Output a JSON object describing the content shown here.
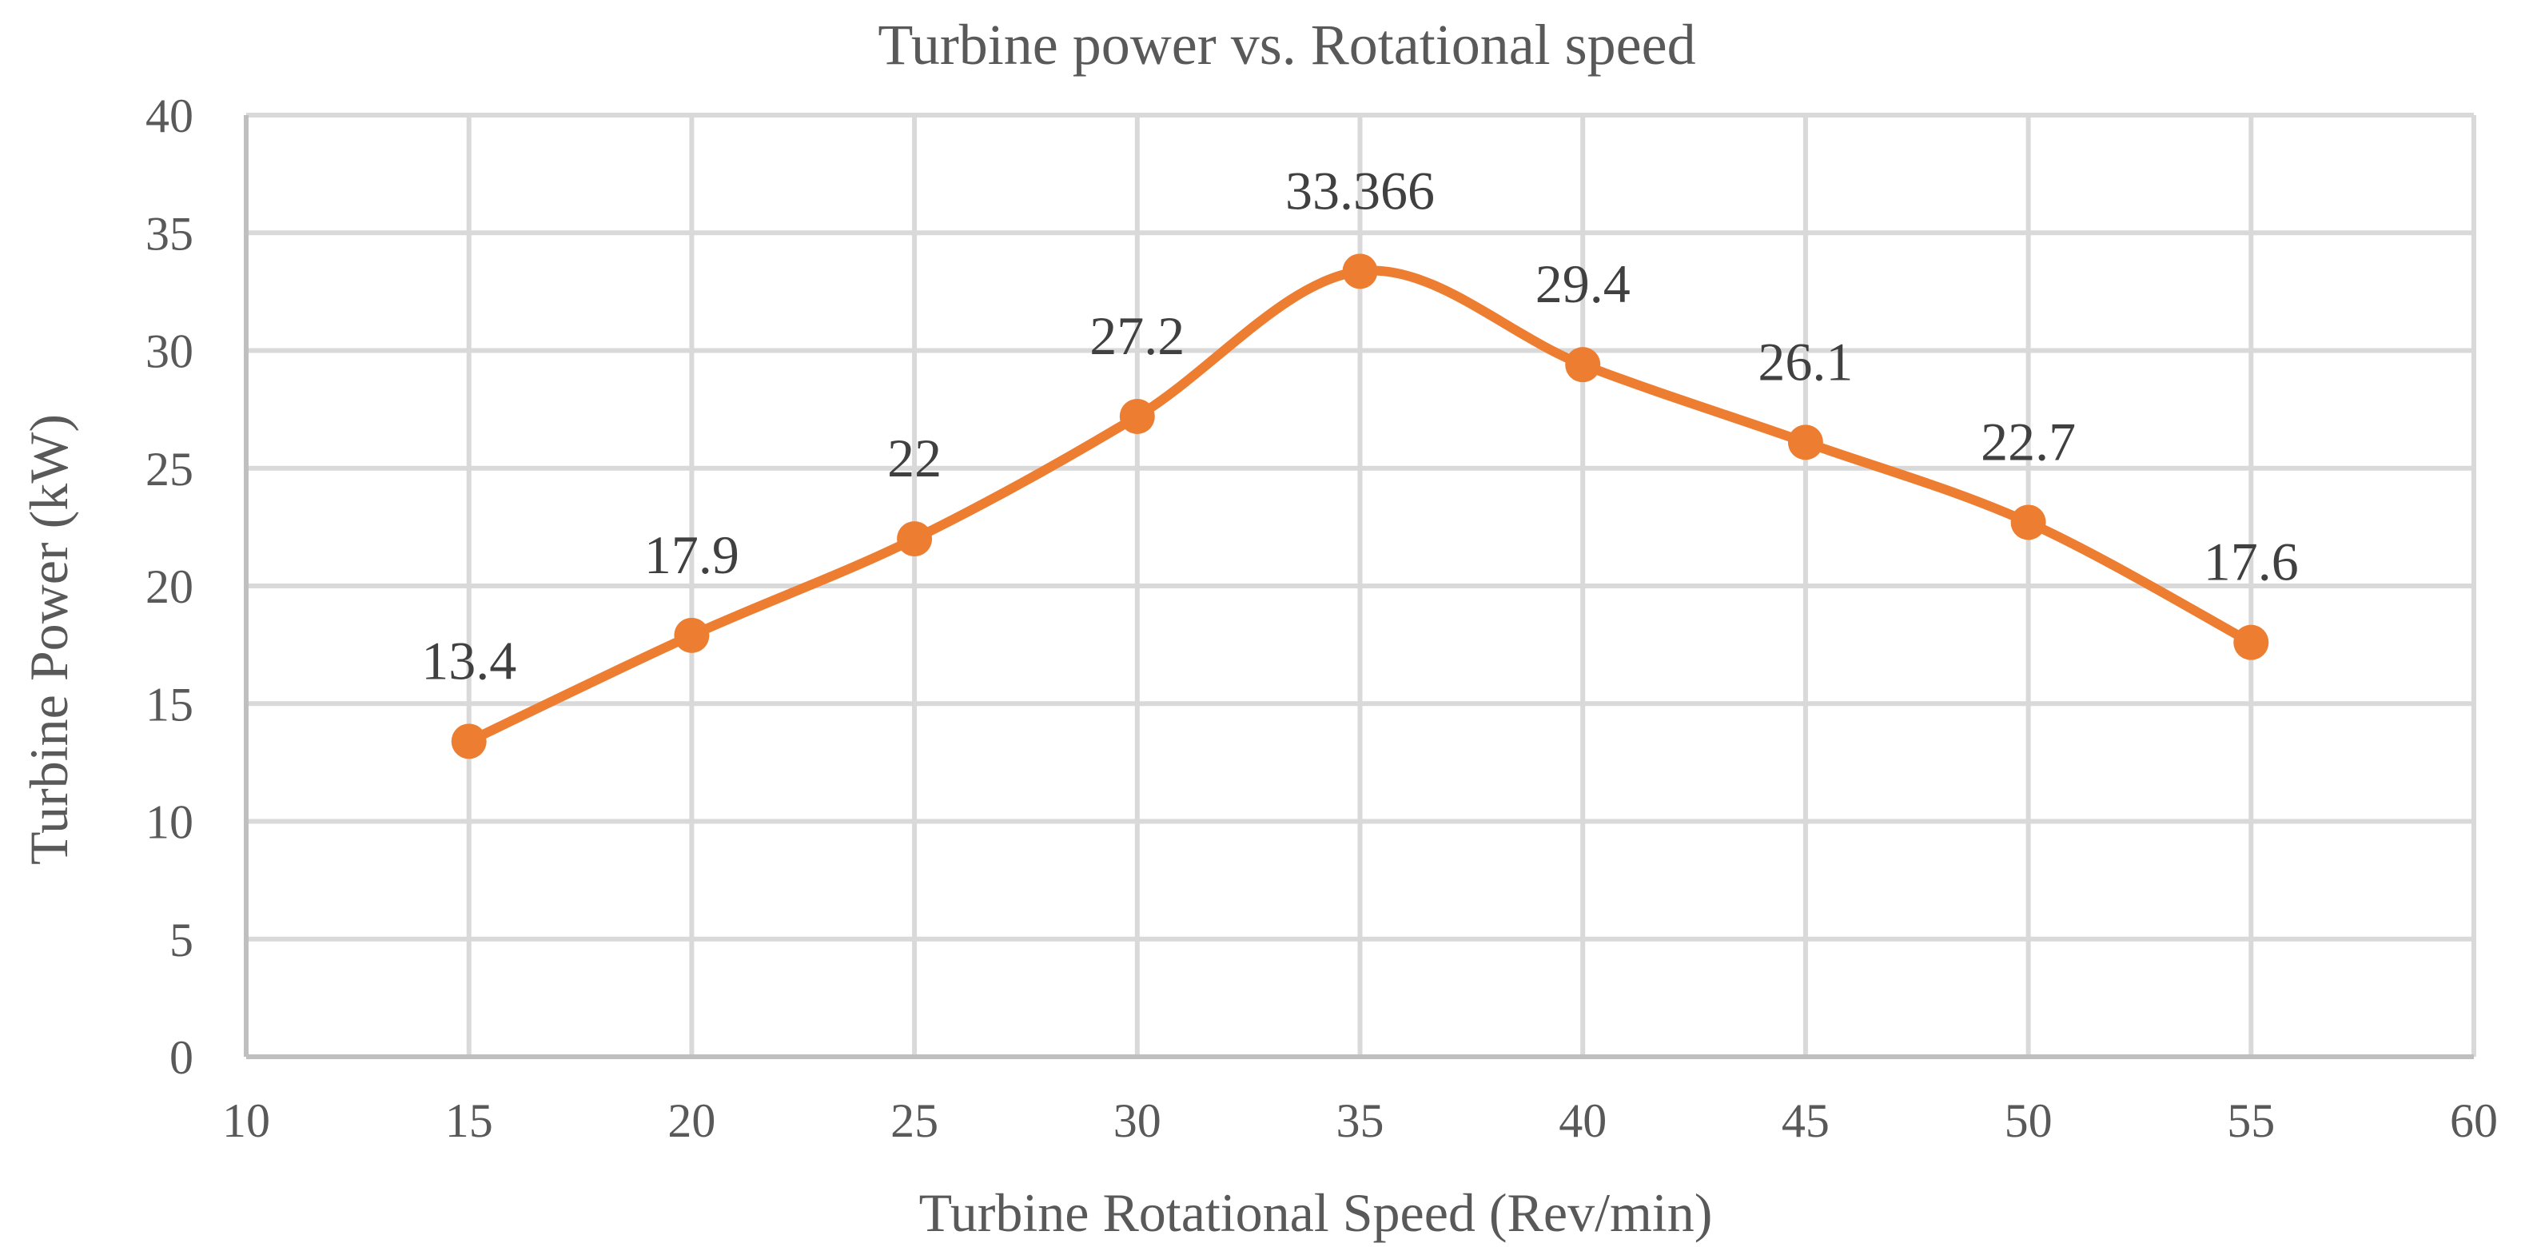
{
  "chart_data": {
    "type": "scatter",
    "title": "Turbine power vs. Rotational speed",
    "xlabel": "Turbine Rotational Speed (Rev/min)",
    "ylabel": "Turbine Power (kW)",
    "xlim": [
      10,
      60
    ],
    "ylim": [
      0,
      40
    ],
    "x_ticks": [
      10,
      15,
      20,
      25,
      30,
      35,
      40,
      45,
      50,
      55,
      60
    ],
    "y_ticks": [
      0,
      5,
      10,
      15,
      20,
      25,
      30,
      35,
      40
    ],
    "grid": true,
    "line_style": "smooth",
    "series": [
      {
        "name": "Turbine Power",
        "color": "#ed7d31",
        "x": [
          15,
          20,
          25,
          30,
          35,
          40,
          45,
          50,
          55
        ],
        "y": [
          13.4,
          17.9,
          22,
          27.2,
          33.366,
          29.4,
          26.1,
          22.7,
          17.6
        ],
        "labels": [
          "13.4",
          "17.9",
          "22",
          "27.2",
          "33.366",
          "29.4",
          "26.1",
          "22.7",
          "17.6"
        ]
      }
    ]
  }
}
